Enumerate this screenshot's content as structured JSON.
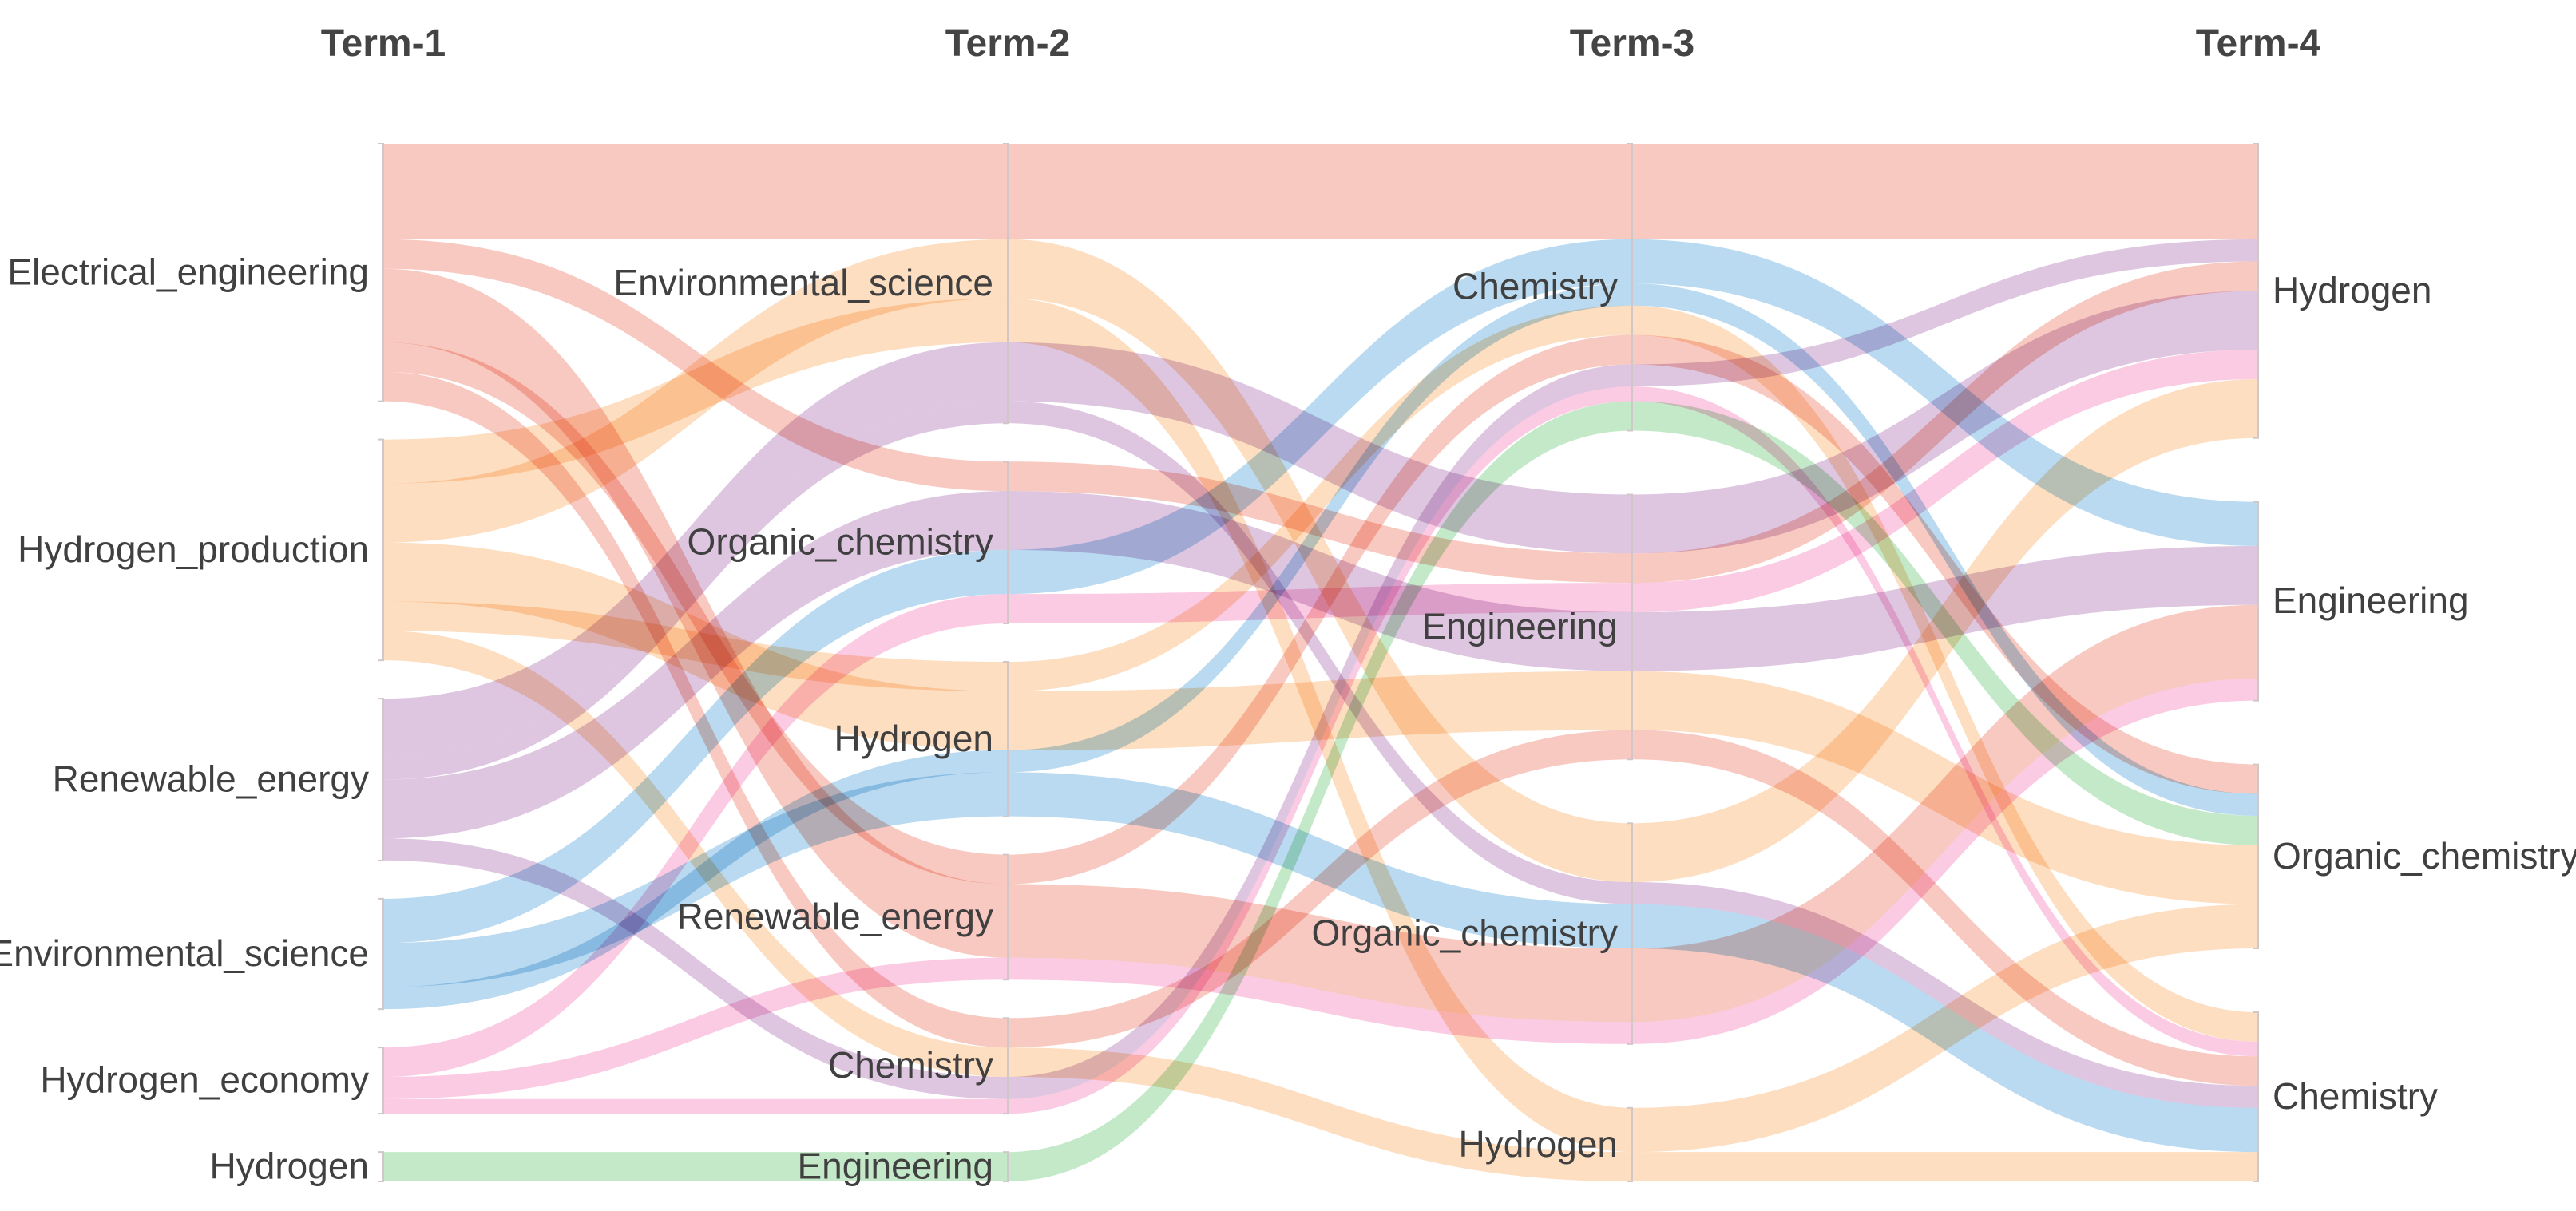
{
  "columns": [
    "Term-1",
    "Term-2",
    "Term-3",
    "Term-4"
  ],
  "colors": {
    "Electrical_engineering": "#f4a89a",
    "Hydrogen_production": "#fcc99a",
    "Renewable_energy": "#c9a3cf",
    "Environmental_science": "#8ec4e6",
    "Hydrogen_economy": "#f9a9d2",
    "Hydrogen": "#9fdca7"
  },
  "nodes": [
    {
      "id": "t1_ee",
      "col": 0,
      "label": "Electrical_engineering"
    },
    {
      "id": "t1_hp",
      "col": 0,
      "label": "Hydrogen_production"
    },
    {
      "id": "t1_re",
      "col": 0,
      "label": "Renewable_energy"
    },
    {
      "id": "t1_es",
      "col": 0,
      "label": "Environmental_science"
    },
    {
      "id": "t1_he",
      "col": 0,
      "label": "Hydrogen_economy"
    },
    {
      "id": "t1_h",
      "col": 0,
      "label": "Hydrogen"
    },
    {
      "id": "t2_es",
      "col": 1,
      "label": "Environmental_science"
    },
    {
      "id": "t2_oc",
      "col": 1,
      "label": "Organic_chemistry"
    },
    {
      "id": "t2_h",
      "col": 1,
      "label": "Hydrogen"
    },
    {
      "id": "t2_re",
      "col": 1,
      "label": "Renewable_energy"
    },
    {
      "id": "t2_c",
      "col": 1,
      "label": "Chemistry"
    },
    {
      "id": "t2_e",
      "col": 1,
      "label": "Engineering"
    },
    {
      "id": "t3_c",
      "col": 2,
      "label": "Chemistry"
    },
    {
      "id": "t3_e",
      "col": 2,
      "label": "Engineering"
    },
    {
      "id": "t3_oc",
      "col": 2,
      "label": "Organic_chemistry"
    },
    {
      "id": "t3_h",
      "col": 2,
      "label": "Hydrogen"
    },
    {
      "id": "t4_h",
      "col": 3,
      "label": "Hydrogen"
    },
    {
      "id": "t4_e",
      "col": 3,
      "label": "Engineering"
    },
    {
      "id": "t4_oc",
      "col": 3,
      "label": "Organic_chemistry"
    },
    {
      "id": "t4_c",
      "col": 3,
      "label": "Chemistry"
    }
  ],
  "flows": [
    {
      "group": "Electrical_engineering",
      "path": [
        "t1_ee",
        "t2_es",
        "t3_c",
        "t4_h"
      ],
      "value": 13
    },
    {
      "group": "Electrical_engineering",
      "path": [
        "t1_ee",
        "t2_oc",
        "t3_e",
        "t4_h"
      ],
      "value": 4
    },
    {
      "group": "Electrical_engineering",
      "path": [
        "t1_ee",
        "t2_re",
        "t3_oc",
        "t4_e"
      ],
      "value": 10
    },
    {
      "group": "Electrical_engineering",
      "path": [
        "t1_ee",
        "t2_re",
        "t3_c",
        "t4_oc"
      ],
      "value": 4
    },
    {
      "group": "Electrical_engineering",
      "path": [
        "t1_ee",
        "t2_c",
        "t3_e",
        "t4_c"
      ],
      "value": 4
    },
    {
      "group": "Hydrogen_production",
      "path": [
        "t1_hp",
        "t2_es",
        "t3_h",
        "t4_oc"
      ],
      "value": 6
    },
    {
      "group": "Hydrogen_production",
      "path": [
        "t1_hp",
        "t2_es",
        "t3_oc",
        "t4_h"
      ],
      "value": 8
    },
    {
      "group": "Hydrogen_production",
      "path": [
        "t1_hp",
        "t2_h",
        "t3_e",
        "t4_oc"
      ],
      "value": 8
    },
    {
      "group": "Hydrogen_production",
      "path": [
        "t1_hp",
        "t2_h",
        "t3_c",
        "t4_c"
      ],
      "value": 4
    },
    {
      "group": "Hydrogen_production",
      "path": [
        "t1_hp",
        "t2_c",
        "t3_h",
        "t4_c"
      ],
      "value": 4
    },
    {
      "group": "Renewable_energy",
      "path": [
        "t1_re",
        "t2_es",
        "t3_e",
        "t4_h"
      ],
      "value": 8
    },
    {
      "group": "Renewable_energy",
      "path": [
        "t1_re",
        "t2_oc",
        "t3_e",
        "t4_e"
      ],
      "value": 8
    },
    {
      "group": "Renewable_energy",
      "path": [
        "t1_re",
        "t2_es",
        "t3_oc",
        "t4_c"
      ],
      "value": 3
    },
    {
      "group": "Renewable_energy",
      "path": [
        "t1_re",
        "t2_c",
        "t3_c",
        "t4_h"
      ],
      "value": 3
    },
    {
      "group": "Environmental_science",
      "path": [
        "t1_es",
        "t2_oc",
        "t3_c",
        "t4_e"
      ],
      "value": 6
    },
    {
      "group": "Environmental_science",
      "path": [
        "t1_es",
        "t2_h",
        "t3_oc",
        "t4_c"
      ],
      "value": 6
    },
    {
      "group": "Environmental_science",
      "path": [
        "t1_es",
        "t2_h",
        "t3_c",
        "t4_oc"
      ],
      "value": 3
    },
    {
      "group": "Hydrogen_economy",
      "path": [
        "t1_he",
        "t2_oc",
        "t3_e",
        "t4_h"
      ],
      "value": 4
    },
    {
      "group": "Hydrogen_economy",
      "path": [
        "t1_he",
        "t2_re",
        "t3_oc",
        "t4_e"
      ],
      "value": 3
    },
    {
      "group": "Hydrogen_economy",
      "path": [
        "t1_he",
        "t2_c",
        "t3_c",
        "t4_c"
      ],
      "value": 2
    },
    {
      "group": "Hydrogen",
      "path": [
        "t1_h",
        "t2_e",
        "t3_c",
        "t4_oc"
      ],
      "value": 4
    }
  ]
}
